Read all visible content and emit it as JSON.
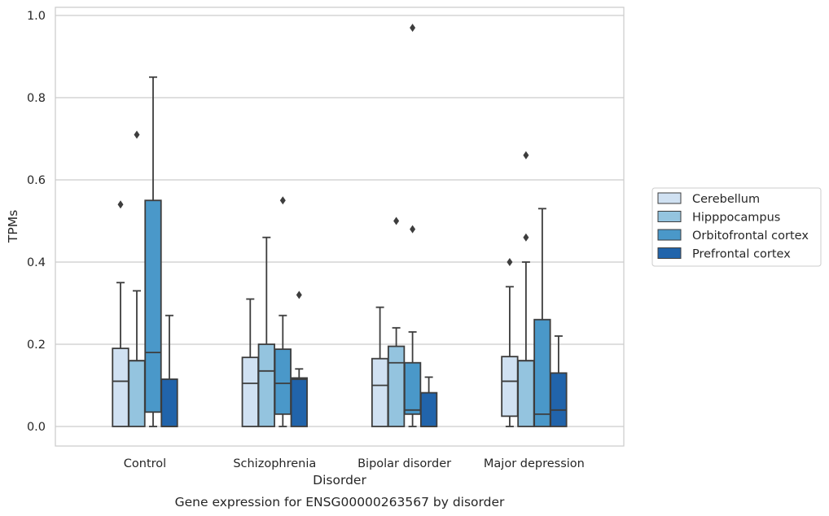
{
  "chart_data": {
    "type": "box",
    "caption": "Gene expression for ENSG00000263567 by disorder",
    "xlabel": "Disorder",
    "ylabel": "TPMs",
    "ylim": [
      -0.046,
      1.02
    ],
    "yticks": [
      "0.0",
      "0.2",
      "0.4",
      "0.6",
      "0.8",
      "1.0"
    ],
    "ytick_values": [
      0.0,
      0.2,
      0.4,
      0.6,
      0.8,
      1.0
    ],
    "grid": true,
    "legend_position": "right",
    "categories": [
      "Control",
      "Schizophrenia",
      "Bipolar disorder",
      "Major depression"
    ],
    "series": [
      {
        "name": "Cerebellum",
        "color": "#d0e1f2",
        "boxes": [
          {
            "min": 0.0,
            "q1": 0.0,
            "median": 0.11,
            "q3": 0.19,
            "max": 0.35,
            "outliers": [
              0.54
            ]
          },
          {
            "min": 0.0,
            "q1": 0.0,
            "median": 0.105,
            "q3": 0.168,
            "max": 0.31,
            "outliers": []
          },
          {
            "min": 0.0,
            "q1": 0.0,
            "median": 0.1,
            "q3": 0.165,
            "max": 0.29,
            "outliers": []
          },
          {
            "min": 0.0,
            "q1": 0.025,
            "median": 0.11,
            "q3": 0.17,
            "max": 0.34,
            "outliers": [
              0.4
            ]
          }
        ]
      },
      {
        "name": "Hipppocampus",
        "color": "#94c4df",
        "boxes": [
          {
            "min": 0.0,
            "q1": 0.0,
            "median": 0.16,
            "q3": 0.16,
            "max": 0.33,
            "outliers": [
              0.71
            ]
          },
          {
            "min": 0.0,
            "q1": 0.0,
            "median": 0.135,
            "q3": 0.2,
            "max": 0.46,
            "outliers": []
          },
          {
            "min": 0.0,
            "q1": 0.0,
            "median": 0.155,
            "q3": 0.195,
            "max": 0.24,
            "outliers": [
              0.5
            ]
          },
          {
            "min": 0.0,
            "q1": 0.0,
            "median": 0.16,
            "q3": 0.16,
            "max": 0.4,
            "outliers": [
              0.46,
              0.66
            ]
          }
        ]
      },
      {
        "name": "Orbitofrontal cortex",
        "color": "#4a98c9",
        "boxes": [
          {
            "min": 0.0,
            "q1": 0.035,
            "median": 0.18,
            "q3": 0.55,
            "max": 0.85,
            "outliers": []
          },
          {
            "min": 0.0,
            "q1": 0.03,
            "median": 0.105,
            "q3": 0.188,
            "max": 0.27,
            "outliers": [
              0.55
            ]
          },
          {
            "min": 0.0,
            "q1": 0.03,
            "median": 0.04,
            "q3": 0.155,
            "max": 0.23,
            "outliers": [
              0.48,
              0.97
            ]
          },
          {
            "min": 0.0,
            "q1": 0.0,
            "median": 0.03,
            "q3": 0.26,
            "max": 0.53,
            "outliers": []
          }
        ]
      },
      {
        "name": "Prefrontal cortex",
        "color": "#2164ab",
        "boxes": [
          {
            "min": 0.0,
            "q1": 0.0,
            "median": 0.0,
            "q3": 0.115,
            "max": 0.27,
            "outliers": []
          },
          {
            "min": 0.0,
            "q1": 0.0,
            "median": 0.115,
            "q3": 0.118,
            "max": 0.14,
            "outliers": [
              0.32
            ]
          },
          {
            "min": 0.0,
            "q1": 0.0,
            "median": 0.0,
            "q3": 0.082,
            "max": 0.12,
            "outliers": []
          },
          {
            "min": 0.0,
            "q1": 0.0,
            "median": 0.04,
            "q3": 0.13,
            "max": 0.22,
            "outliers": []
          }
        ]
      }
    ]
  }
}
